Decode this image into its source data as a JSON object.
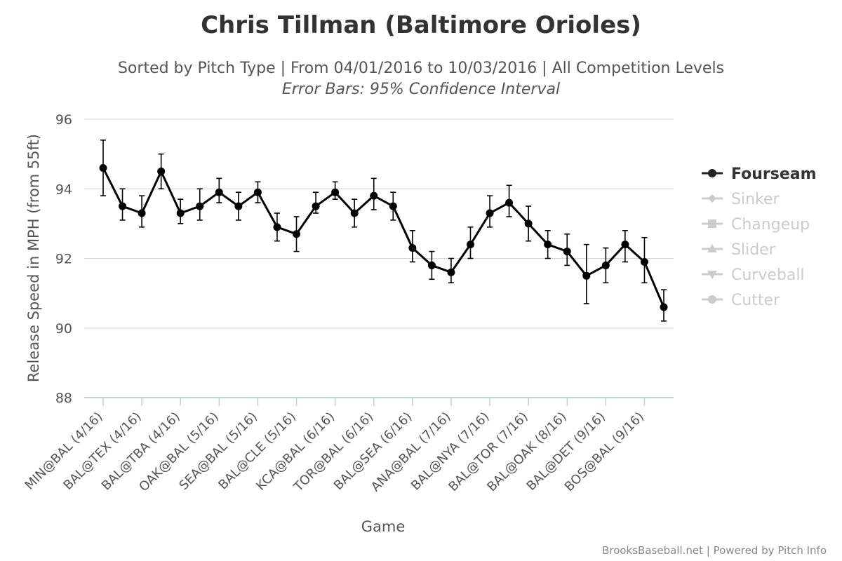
{
  "chart_data": {
    "type": "line",
    "title": "Chris Tillman (Baltimore Orioles)",
    "subtitle": "Sorted by Pitch Type | From 04/01/2016 to 10/03/2016 | All Competition Levels",
    "subtitle2": "Error Bars: 95% Confidence Interval",
    "xlabel": "Game",
    "ylabel": "Release Speed in MPH (from 55ft)",
    "ylim": [
      88,
      96
    ],
    "yticks": [
      88,
      90,
      92,
      94,
      96
    ],
    "grid": true,
    "legend_position": "right",
    "x_tick_labels": [
      "MIN@BAL (4/16)",
      "BAL@TEX (4/16)",
      "BAL@TBA (4/16)",
      "OAK@BAL (5/16)",
      "SEA@BAL (5/16)",
      "BAL@CLE (5/16)",
      "KCA@BAL (6/16)",
      "TOR@BAL (6/16)",
      "BAL@SEA (6/16)",
      "ANA@BAL (7/16)",
      "BAL@NYA (7/16)",
      "BAL@TOR (7/16)",
      "BAL@OAK (8/16)",
      "BAL@DET (9/16)",
      "BOS@BAL (9/16)"
    ],
    "series": [
      {
        "name": "Fourseam",
        "color": "#000000",
        "visible": true,
        "values": [
          94.6,
          93.5,
          93.3,
          94.5,
          93.3,
          93.5,
          93.9,
          93.5,
          93.9,
          92.9,
          92.7,
          93.5,
          93.9,
          93.3,
          93.8,
          93.5,
          92.3,
          91.8,
          91.6,
          92.4,
          93.3,
          93.6,
          93.0,
          92.4,
          92.2,
          91.5,
          91.8,
          92.4,
          91.9,
          90.6
        ],
        "error_low": [
          93.8,
          93.1,
          92.9,
          94.0,
          93.0,
          93.1,
          93.6,
          93.1,
          93.6,
          92.5,
          92.2,
          93.3,
          93.7,
          92.9,
          93.4,
          93.1,
          91.9,
          91.4,
          91.3,
          92.0,
          92.9,
          93.2,
          92.5,
          92.0,
          91.8,
          90.7,
          91.3,
          91.9,
          91.3,
          90.2
        ],
        "error_high": [
          95.4,
          94.0,
          93.8,
          95.0,
          93.7,
          94.0,
          94.3,
          93.9,
          94.2,
          93.3,
          93.2,
          93.9,
          94.2,
          93.7,
          94.3,
          93.9,
          92.8,
          92.2,
          92.0,
          92.9,
          93.8,
          94.1,
          93.5,
          92.8,
          92.7,
          92.4,
          92.3,
          92.8,
          92.6,
          91.1
        ]
      },
      {
        "name": "Sinker",
        "color": "#cccccc",
        "visible": false,
        "values": []
      },
      {
        "name": "Changeup",
        "color": "#cccccc",
        "visible": false,
        "values": []
      },
      {
        "name": "Slider",
        "color": "#cccccc",
        "visible": false,
        "values": []
      },
      {
        "name": "Curveball",
        "color": "#cccccc",
        "visible": false,
        "values": []
      },
      {
        "name": "Cutter",
        "color": "#cccccc",
        "visible": false,
        "values": []
      }
    ]
  },
  "legend": {
    "items": [
      {
        "label": "Fourseam",
        "symbol": "circle",
        "color": "#222222",
        "active": true
      },
      {
        "label": "Sinker",
        "symbol": "diamond",
        "color": "#cccccc",
        "active": false
      },
      {
        "label": "Changeup",
        "symbol": "square",
        "color": "#cccccc",
        "active": false
      },
      {
        "label": "Slider",
        "symbol": "triangle",
        "color": "#cccccc",
        "active": false
      },
      {
        "label": "Curveball",
        "symbol": "triangle-down",
        "color": "#cccccc",
        "active": false
      },
      {
        "label": "Cutter",
        "symbol": "circle",
        "color": "#cccccc",
        "active": false
      }
    ]
  },
  "credits": "BrooksBaseball.net | Powered by Pitch Info"
}
